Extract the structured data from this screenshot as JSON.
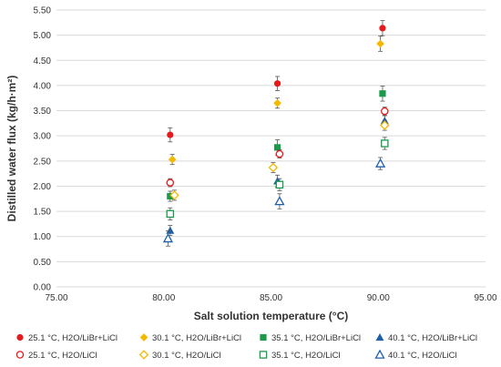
{
  "chart_data": {
    "type": "scatter",
    "title": "",
    "xlabel": "Salt solution temperature (°C)",
    "ylabel": "Distilled water flux (kg/h·m²)",
    "xlim": [
      75,
      95
    ],
    "ylim": [
      0,
      5.5
    ],
    "x_ticks": [
      "75.00",
      "80.00",
      "85.00",
      "90.00",
      "95.00"
    ],
    "y_ticks": [
      "0.00",
      "0.50",
      "1.00",
      "1.50",
      "2.00",
      "2.50",
      "3.00",
      "3.50",
      "4.00",
      "4.50",
      "5.00",
      "5.50"
    ],
    "grid": "horizontal",
    "legend_position": "bottom",
    "series": [
      {
        "name": "25.1 °C, H2O/LiBr+LiCl",
        "color": "#e41a1c",
        "marker": "circle",
        "filled": true,
        "x": [
          80.3,
          85.3,
          90.2
        ],
        "y": [
          3.02,
          4.04,
          5.14
        ],
        "err": [
          0.14,
          0.14,
          0.15
        ]
      },
      {
        "name": "30.1 °C, H2O/LiBr+LiCl",
        "color": "#f5b800",
        "marker": "diamond",
        "filled": true,
        "x": [
          80.4,
          85.3,
          90.1
        ],
        "y": [
          2.53,
          3.65,
          4.83
        ],
        "err": [
          0.1,
          0.1,
          0.15
        ]
      },
      {
        "name": "35.1 °C, H2O/LiBr+LiCl",
        "color": "#1a9a4a",
        "marker": "square",
        "filled": true,
        "x": [
          80.3,
          85.3,
          90.2
        ],
        "y": [
          1.8,
          2.77,
          3.84
        ],
        "err": [
          0.1,
          0.15,
          0.15
        ]
      },
      {
        "name": "40.1 °C, H2O/LiBr+LiCl",
        "color": "#1f5fa8",
        "marker": "triangle",
        "filled": true,
        "x": [
          80.3,
          85.3,
          90.3
        ],
        "y": [
          1.12,
          2.1,
          3.3
        ],
        "err": [
          0.1,
          0.12,
          0.1
        ]
      },
      {
        "name": "25.1 °C, H2O/LiCl",
        "color": "#e41a1c",
        "marker": "circle",
        "filled": false,
        "x": [
          80.3,
          85.4,
          90.3
        ],
        "y": [
          2.07,
          2.64,
          3.49
        ],
        "err": [
          0.08,
          0.08,
          0.08
        ]
      },
      {
        "name": "30.1 °C, H2O/LiCl",
        "color": "#f5b800",
        "marker": "diamond",
        "filled": false,
        "x": [
          80.5,
          85.1,
          90.3
        ],
        "y": [
          1.82,
          2.37,
          3.21
        ],
        "err": [
          0.1,
          0.1,
          0.1
        ]
      },
      {
        "name": "35.1 °C, H2O/LiCl",
        "color": "#1a9a4a",
        "marker": "square",
        "filled": false,
        "x": [
          80.3,
          85.4,
          90.3
        ],
        "y": [
          1.45,
          2.03,
          2.85
        ],
        "err": [
          0.12,
          0.12,
          0.12
        ]
      },
      {
        "name": "40.1 °C, H2O/LiCl",
        "color": "#1f5fa8",
        "marker": "triangle",
        "filled": false,
        "x": [
          80.2,
          85.4,
          90.1
        ],
        "y": [
          0.96,
          1.7,
          2.45
        ],
        "err": [
          0.15,
          0.15,
          0.12
        ]
      }
    ]
  }
}
